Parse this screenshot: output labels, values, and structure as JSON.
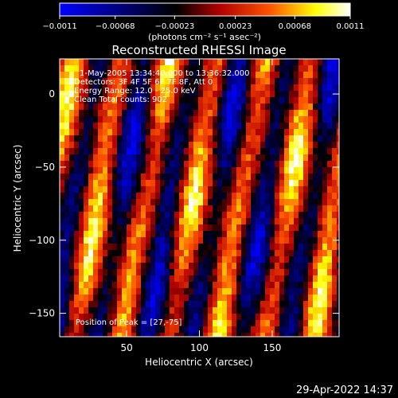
{
  "colorbar": {
    "ticks": [
      "-0.0011",
      "-0.00068",
      "-0.00023",
      "0.00023",
      "0.00068",
      "0.0011"
    ],
    "units_label": "(photons cm⁻² s⁻¹ asec⁻²)",
    "range": [
      -0.0011,
      0.0011
    ],
    "colors": [
      "#0000ff",
      "#000000",
      "#b00000",
      "#ff5000",
      "#ffff00",
      "#ffffff"
    ]
  },
  "chart_data": {
    "type": "heatmap",
    "title": "Reconstructed RHESSI Image",
    "xlabel": "Heliocentric X (arcsec)",
    "ylabel": "Heliocentric Y (arcsec)",
    "xlim": [
      4,
      196
    ],
    "ylim": [
      -166,
      24
    ],
    "xticks": [
      {
        "value": 50,
        "label": "50"
      },
      {
        "value": 100,
        "label": "100"
      },
      {
        "value": 150,
        "label": "150"
      }
    ],
    "yticks": [
      {
        "value": 0,
        "label": "0"
      },
      {
        "value": -50,
        "label": "−50"
      },
      {
        "value": -100,
        "label": "−100"
      },
      {
        "value": -150,
        "label": "−150"
      }
    ],
    "annotations": [
      "1-May-2005 13:34:40.000 to 13:36:32.000",
      "Detectors: 3F 4F 5F 6F 7F 8F, Att 0",
      "Energy Range: 12.0 - 25.0 keV",
      "Clean    Total counts: 902"
    ],
    "peak_label": "Position of Peak = [27,-75]",
    "peak": [
      27,
      -75
    ]
  },
  "timestamp": "29-Apr-2022 14:37"
}
